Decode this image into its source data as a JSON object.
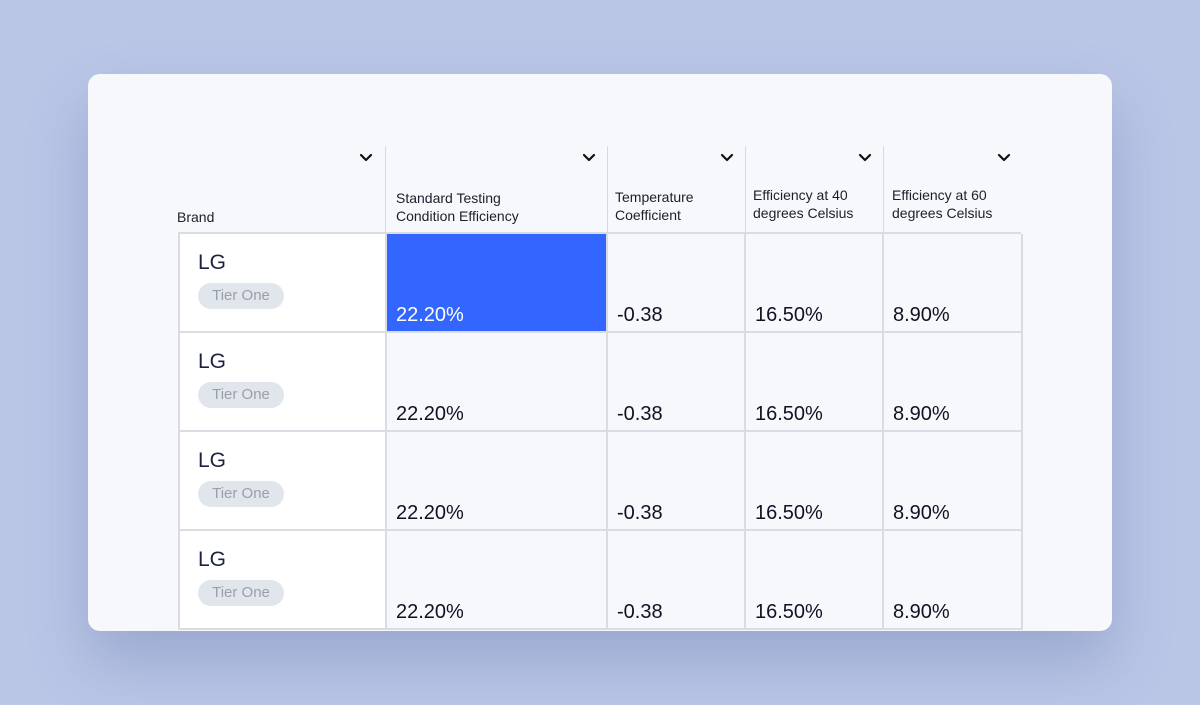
{
  "table": {
    "columns": [
      {
        "label": "Brand"
      },
      {
        "label": "Standard Testing\nCondition Efficiency"
      },
      {
        "label": "Temperature\nCoefficient"
      },
      {
        "label": "Efficiency at 40\ndegrees Celsius"
      },
      {
        "label": "Efficiency at 60\ndegrees Celsius"
      }
    ],
    "rows": [
      {
        "brand": "LG",
        "tier": "Tier One",
        "stc_efficiency": "22.20%",
        "temp_coefficient": "-0.38",
        "eff_40c": "16.50%",
        "eff_60c": "8.90%"
      },
      {
        "brand": "LG",
        "tier": "Tier One",
        "stc_efficiency": "22.20%",
        "temp_coefficient": "-0.38",
        "eff_40c": "16.50%",
        "eff_60c": "8.90%"
      },
      {
        "brand": "LG",
        "tier": "Tier One",
        "stc_efficiency": "22.20%",
        "temp_coefficient": "-0.38",
        "eff_40c": "16.50%",
        "eff_60c": "8.90%"
      },
      {
        "brand": "LG",
        "tier": "Tier One",
        "stc_efficiency": "22.20%",
        "temp_coefficient": "-0.38",
        "eff_40c": "16.50%",
        "eff_60c": "8.90%"
      }
    ],
    "selected_cell_color": "#3366ff"
  }
}
